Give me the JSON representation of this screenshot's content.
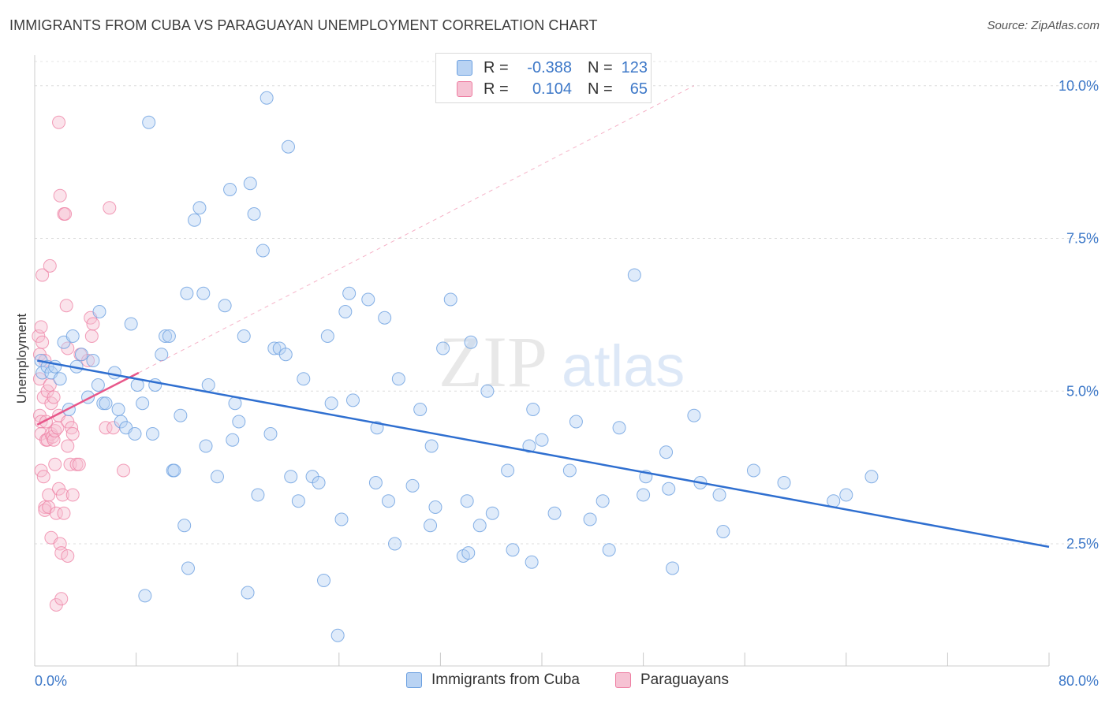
{
  "title": "IMMIGRANTS FROM CUBA VS PARAGUAYAN UNEMPLOYMENT CORRELATION CHART",
  "source": "Source: ZipAtlas.com",
  "watermark": {
    "zip": "ZIP",
    "atlas": "atlas"
  },
  "colors": {
    "blue": "#6a9fe0",
    "blue_fill": "#b9d3f3",
    "blue_line": "#2f6fd0",
    "pink": "#ee7ea2",
    "pink_fill": "#f6c2d3",
    "pink_line": "#e8578a",
    "axis_text": "#3d78c8"
  },
  "legend": {
    "rows": [
      {
        "r_label": "R =",
        "r_value": "-0.388",
        "n_label": "N =",
        "n_value": "123"
      },
      {
        "r_label": "R =",
        "r_value": "0.104",
        "n_label": "N =",
        "n_value": "65"
      }
    ]
  },
  "bottom_legend": {
    "series1": "Immigrants from Cuba",
    "series2": "Paraguayans"
  },
  "chart_data": {
    "type": "scatter",
    "title": "IMMIGRANTS FROM CUBA VS PARAGUAYAN UNEMPLOYMENT CORRELATION CHART",
    "xlabel": "",
    "ylabel": "Unemployment",
    "xlim": [
      0,
      80
    ],
    "ylim": [
      0.5,
      10.5
    ],
    "x_tick_labels": [
      "0.0%",
      "80.0%"
    ],
    "y_ticks": [
      2.5,
      5.0,
      7.5,
      10.0
    ],
    "y_tick_labels": [
      "2.5%",
      "5.0%",
      "7.5%",
      "10.0%"
    ],
    "grid": true,
    "series": [
      {
        "name": "Immigrants from Cuba",
        "trend": {
          "x": [
            0.2,
            80
          ],
          "y": [
            5.5,
            2.45
          ]
        },
        "points": [
          [
            0.5,
            5.5
          ],
          [
            0.6,
            5.3
          ],
          [
            1.0,
            5.4
          ],
          [
            1.3,
            5.3
          ],
          [
            1.6,
            5.4
          ],
          [
            2.0,
            5.2
          ],
          [
            2.3,
            5.8
          ],
          [
            2.7,
            4.7
          ],
          [
            3.0,
            5.9
          ],
          [
            3.3,
            5.4
          ],
          [
            3.7,
            5.6
          ],
          [
            4.2,
            4.9
          ],
          [
            4.6,
            5.5
          ],
          [
            5.0,
            5.1
          ],
          [
            5.1,
            6.3
          ],
          [
            5.4,
            4.8
          ],
          [
            5.6,
            4.8
          ],
          [
            6.3,
            5.3
          ],
          [
            6.6,
            4.7
          ],
          [
            6.8,
            4.5
          ],
          [
            7.2,
            4.4
          ],
          [
            7.6,
            6.1
          ],
          [
            7.9,
            4.3
          ],
          [
            8.1,
            5.1
          ],
          [
            8.5,
            4.8
          ],
          [
            8.7,
            1.65
          ],
          [
            9.0,
            9.4
          ],
          [
            9.3,
            4.3
          ],
          [
            9.5,
            5.1
          ],
          [
            10.0,
            5.6
          ],
          [
            10.3,
            5.9
          ],
          [
            10.6,
            5.9
          ],
          [
            10.9,
            3.7
          ],
          [
            11.0,
            3.7
          ],
          [
            11.5,
            4.6
          ],
          [
            11.8,
            2.8
          ],
          [
            12.0,
            6.6
          ],
          [
            12.1,
            2.1
          ],
          [
            12.6,
            7.8
          ],
          [
            13.0,
            8.0
          ],
          [
            13.3,
            6.6
          ],
          [
            13.5,
            4.1
          ],
          [
            13.7,
            5.1
          ],
          [
            14.4,
            3.6
          ],
          [
            15.0,
            6.4
          ],
          [
            15.4,
            8.3
          ],
          [
            15.6,
            4.2
          ],
          [
            15.8,
            4.8
          ],
          [
            16.1,
            4.5
          ],
          [
            16.5,
            5.9
          ],
          [
            16.8,
            1.7
          ],
          [
            17.0,
            8.4
          ],
          [
            17.3,
            7.9
          ],
          [
            17.6,
            3.3
          ],
          [
            18.0,
            7.3
          ],
          [
            18.3,
            9.8
          ],
          [
            18.6,
            4.3
          ],
          [
            18.9,
            5.7
          ],
          [
            19.3,
            5.7
          ],
          [
            19.8,
            5.6
          ],
          [
            20.0,
            9.0
          ],
          [
            20.2,
            3.6
          ],
          [
            20.8,
            3.2
          ],
          [
            21.2,
            5.2
          ],
          [
            21.9,
            3.6
          ],
          [
            22.4,
            3.5
          ],
          [
            22.8,
            1.9
          ],
          [
            23.1,
            5.9
          ],
          [
            23.4,
            4.8
          ],
          [
            23.9,
            1.0
          ],
          [
            24.2,
            2.9
          ],
          [
            24.5,
            6.3
          ],
          [
            24.8,
            6.6
          ],
          [
            25.1,
            4.85
          ],
          [
            26.3,
            6.5
          ],
          [
            26.9,
            3.5
          ],
          [
            27.6,
            6.2
          ],
          [
            27.9,
            3.2
          ],
          [
            28.4,
            2.5
          ],
          [
            28.7,
            5.2
          ],
          [
            29.8,
            3.45
          ],
          [
            30.4,
            4.7
          ],
          [
            31.2,
            2.8
          ],
          [
            31.3,
            4.1
          ],
          [
            31.6,
            3.1
          ],
          [
            32.2,
            5.7
          ],
          [
            32.8,
            6.5
          ],
          [
            33.8,
            2.3
          ],
          [
            34.1,
            3.2
          ],
          [
            34.2,
            2.35
          ],
          [
            34.4,
            5.8
          ],
          [
            35.1,
            2.8
          ],
          [
            35.7,
            5.0
          ],
          [
            36.1,
            3.0
          ],
          [
            37.3,
            3.7
          ],
          [
            37.7,
            2.4
          ],
          [
            39.0,
            4.1
          ],
          [
            39.2,
            2.2
          ],
          [
            39.3,
            4.7
          ],
          [
            40.0,
            4.2
          ],
          [
            41.0,
            3.0
          ],
          [
            42.2,
            3.7
          ],
          [
            42.7,
            4.5
          ],
          [
            43.8,
            2.9
          ],
          [
            45.3,
            2.4
          ],
          [
            46.1,
            4.4
          ],
          [
            47.3,
            6.9
          ],
          [
            48.0,
            3.3
          ],
          [
            48.2,
            3.6
          ],
          [
            49.8,
            4.0
          ],
          [
            50.3,
            2.1
          ],
          [
            52.0,
            4.6
          ],
          [
            52.5,
            3.5
          ],
          [
            54.0,
            3.3
          ],
          [
            54.3,
            2.7
          ],
          [
            56.7,
            3.7
          ],
          [
            59.1,
            3.5
          ],
          [
            63.0,
            3.2
          ],
          [
            64.0,
            3.3
          ],
          [
            66.0,
            3.6
          ],
          [
            44.8,
            3.2
          ],
          [
            50.0,
            3.4
          ],
          [
            27.0,
            4.4
          ]
        ]
      },
      {
        "name": "Paraguayans",
        "trend": {
          "x": [
            0.2,
            8.2
          ],
          "y": [
            4.45,
            5.3
          ]
        },
        "dashed_extension": {
          "x": [
            8.2,
            52
          ],
          "y": [
            5.3,
            10.0
          ]
        },
        "points": [
          [
            0.3,
            5.9
          ],
          [
            0.4,
            5.6
          ],
          [
            0.4,
            5.2
          ],
          [
            0.4,
            4.6
          ],
          [
            0.5,
            4.5
          ],
          [
            0.5,
            4.3
          ],
          [
            0.5,
            3.7
          ],
          [
            0.5,
            6.05
          ],
          [
            0.6,
            5.8
          ],
          [
            0.6,
            6.9
          ],
          [
            0.7,
            4.9
          ],
          [
            0.7,
            3.6
          ],
          [
            0.8,
            3.1
          ],
          [
            0.8,
            3.05
          ],
          [
            0.9,
            4.5
          ],
          [
            0.9,
            4.2
          ],
          [
            1.0,
            4.2
          ],
          [
            1.0,
            5.0
          ],
          [
            1.1,
            3.3
          ],
          [
            1.1,
            3.1
          ],
          [
            1.2,
            7.05
          ],
          [
            1.2,
            5.1
          ],
          [
            1.3,
            4.8
          ],
          [
            1.3,
            4.3
          ],
          [
            1.3,
            2.6
          ],
          [
            1.4,
            4.25
          ],
          [
            1.5,
            4.9
          ],
          [
            1.5,
            4.2
          ],
          [
            1.6,
            4.35
          ],
          [
            1.6,
            3.8
          ],
          [
            1.7,
            3.0
          ],
          [
            1.7,
            1.5
          ],
          [
            1.8,
            4.4
          ],
          [
            1.9,
            9.4
          ],
          [
            1.9,
            4.6
          ],
          [
            1.9,
            3.4
          ],
          [
            2.0,
            8.2
          ],
          [
            2.0,
            2.5
          ],
          [
            2.1,
            2.35
          ],
          [
            2.1,
            1.6
          ],
          [
            2.2,
            3.3
          ],
          [
            2.3,
            7.9
          ],
          [
            2.3,
            3.0
          ],
          [
            2.4,
            7.9
          ],
          [
            2.5,
            6.4
          ],
          [
            2.6,
            5.7
          ],
          [
            2.6,
            4.5
          ],
          [
            2.6,
            4.1
          ],
          [
            2.6,
            2.3
          ],
          [
            2.8,
            3.8
          ],
          [
            2.9,
            4.4
          ],
          [
            3.0,
            3.3
          ],
          [
            3.0,
            4.3
          ],
          [
            3.3,
            3.8
          ],
          [
            3.5,
            3.8
          ],
          [
            3.6,
            5.6
          ],
          [
            4.2,
            5.5
          ],
          [
            4.4,
            6.2
          ],
          [
            4.5,
            5.9
          ],
          [
            4.6,
            6.1
          ],
          [
            5.6,
            4.4
          ],
          [
            5.9,
            8.0
          ],
          [
            6.2,
            4.4
          ],
          [
            7.0,
            3.7
          ],
          [
            0.8,
            5.5
          ]
        ]
      }
    ]
  }
}
